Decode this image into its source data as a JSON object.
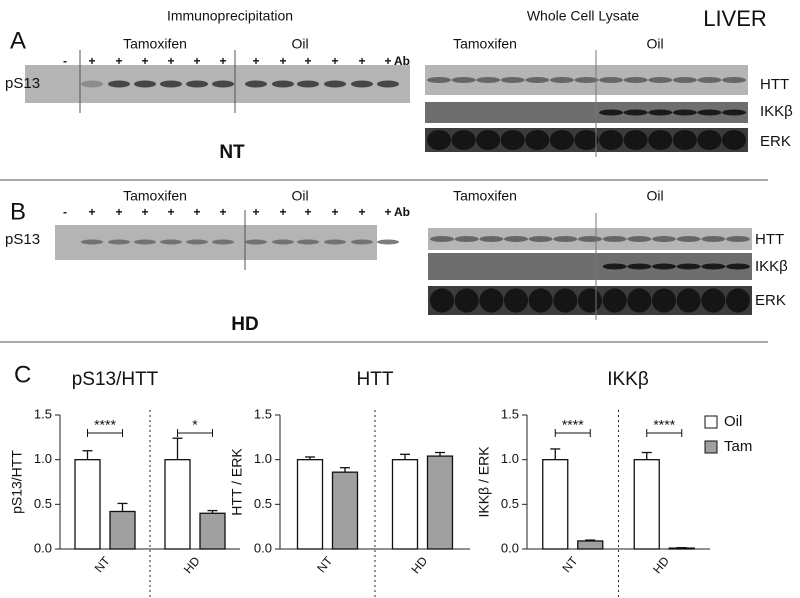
{
  "panels": [
    {
      "label": "A",
      "ip_title": "Immunoprecipitation",
      "wcl_title": "Whole Cell Lysate",
      "tissue": "LIVER",
      "ip_groups": [
        "Tamoxifen",
        "Oil"
      ],
      "wcl_groups": [
        "Tamoxifen",
        "Oil"
      ],
      "lanes": [
        "-",
        "+",
        "+",
        "+",
        "+",
        "+",
        "+",
        "+",
        "+",
        "+",
        "+",
        "+",
        "+"
      ],
      "antibody": "Ab",
      "ip_blot": "pS13",
      "wcl_blots": [
        "HTT",
        "IKKβ",
        "ERK"
      ],
      "genotype": "NT"
    },
    {
      "label": "B",
      "ip_groups": [
        "Tamoxifen",
        "Oil"
      ],
      "wcl_groups": [
        "Tamoxifen",
        "Oil"
      ],
      "lanes": [
        "-",
        "+",
        "+",
        "+",
        "+",
        "+",
        "+",
        "+",
        "+",
        "+",
        "+",
        "+",
        "+"
      ],
      "antibody": "Ab",
      "ip_blot": "pS13",
      "wcl_blots": [
        "HTT",
        "IKKβ",
        "ERK"
      ],
      "genotype": "HD"
    }
  ],
  "panel_c_label": "C",
  "chart_data": [
    {
      "type": "bar",
      "title": "pS13/HTT",
      "y_label": "pS13/HTT",
      "categories": [
        "NT",
        "HD"
      ],
      "ylim": [
        0,
        1.5
      ],
      "yticks": [
        {
          "value": 0,
          "label": "0.0"
        },
        0.5,
        {
          "value": 1,
          "label": "1.0"
        },
        1.5
      ],
      "series": [
        {
          "name": "Oil",
          "color": "#ffffff",
          "values": [
            1.0,
            1.0
          ],
          "errors": [
            0.1,
            0.24
          ]
        },
        {
          "name": "Tam",
          "color": "#a0a0a0",
          "values": [
            0.42,
            0.4
          ],
          "errors": [
            0.09,
            0.03
          ]
        }
      ],
      "annotations": [
        "****",
        "*"
      ]
    },
    {
      "type": "bar",
      "title": "HTT",
      "y_label": "HTT / ERK",
      "categories": [
        "NT",
        "HD"
      ],
      "ylim": [
        0,
        1.5
      ],
      "yticks": [
        {
          "value": 0,
          "label": "0.0"
        },
        0.5,
        {
          "value": 1,
          "label": "1.0"
        },
        1.5
      ],
      "series": [
        {
          "name": "Oil",
          "color": "#ffffff",
          "values": [
            1.0,
            1.0
          ],
          "errors": [
            0.03,
            0.06
          ]
        },
        {
          "name": "Tam",
          "color": "#a0a0a0",
          "values": [
            0.86,
            1.04
          ],
          "errors": [
            0.05,
            0.04
          ]
        }
      ]
    },
    {
      "type": "bar",
      "title": "IKKβ",
      "y_label": "IKKβ / ERK",
      "categories": [
        "NT",
        "HD"
      ],
      "ylim": [
        0,
        1.5
      ],
      "yticks": [
        {
          "value": 0,
          "label": "0.0"
        },
        0.5,
        {
          "value": 1,
          "label": "1.0"
        },
        1.5
      ],
      "series": [
        {
          "name": "Oil",
          "color": "#ffffff",
          "values": [
            1.0,
            1.0
          ],
          "errors": [
            0.12,
            0.08
          ]
        },
        {
          "name": "Tam",
          "color": "#a0a0a0",
          "values": [
            0.09,
            0.01
          ],
          "errors": [
            0.01,
            0.005
          ]
        }
      ],
      "annotations": [
        "****",
        "****"
      ],
      "legend": "right"
    }
  ]
}
